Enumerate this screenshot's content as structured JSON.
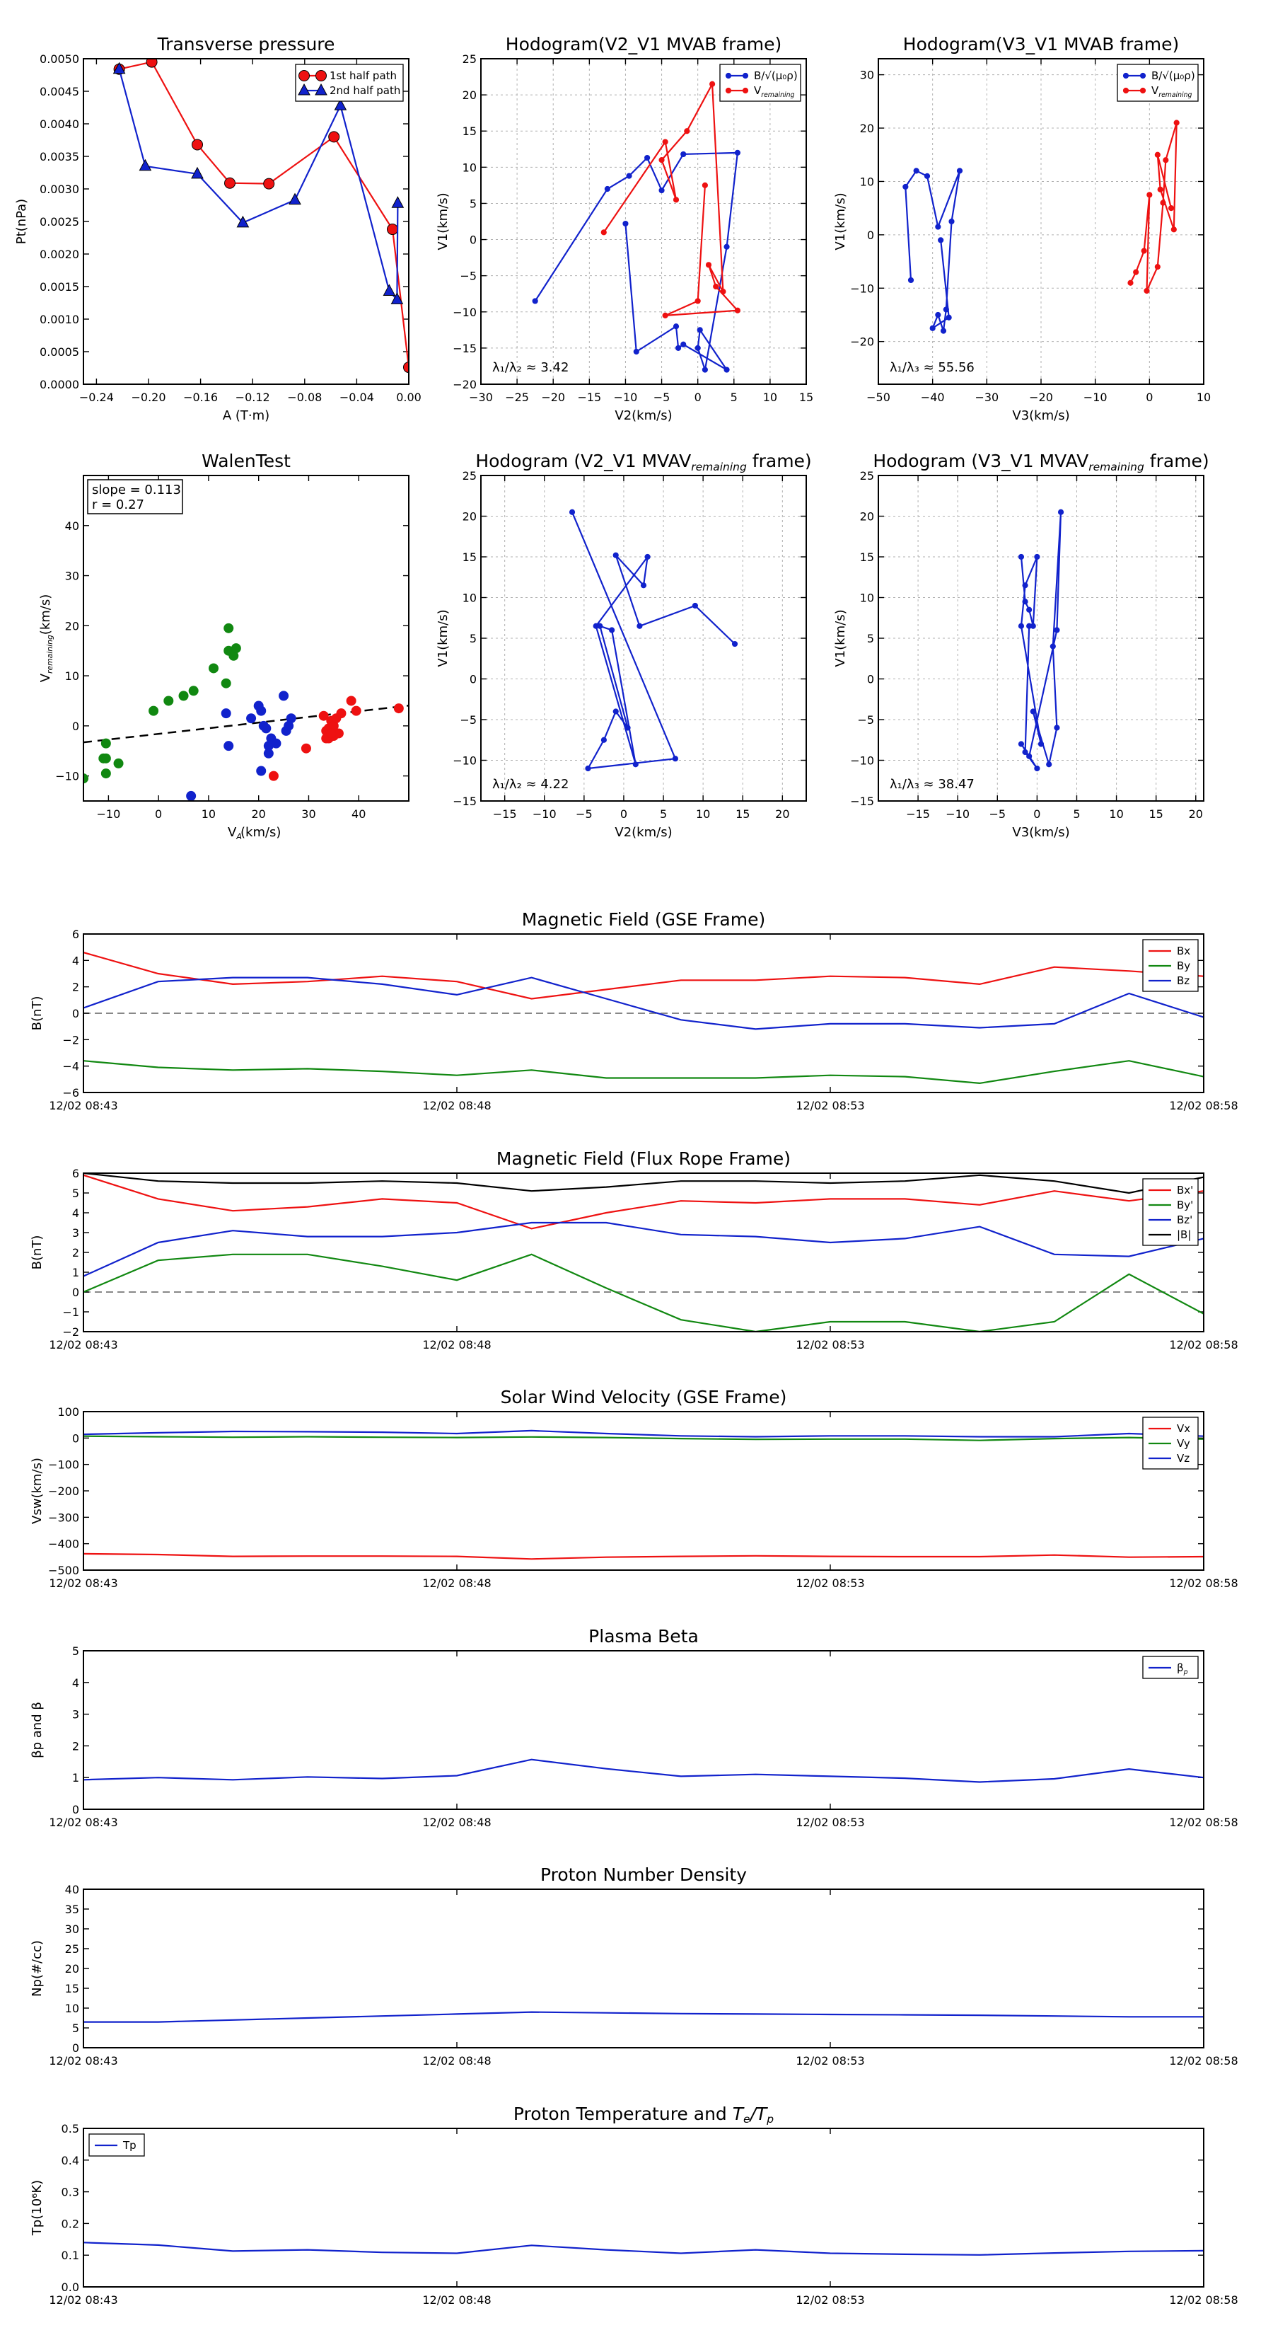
{
  "colors": {
    "red": "#ee1111",
    "blue": "#1122cc",
    "green": "#118811",
    "black": "#000000",
    "gray": "#888888"
  },
  "chart_data": [
    {
      "id": "tp",
      "type": "line",
      "title": "Transverse pressure",
      "xlabel": "A (T·m)",
      "ylabel": "Pt(nPa)",
      "xlim": [
        -0.25,
        0.0
      ],
      "ylim": [
        0.0,
        0.005
      ],
      "xticks": [
        -0.24,
        -0.2,
        -0.16,
        -0.12,
        -0.08,
        -0.04,
        0.0
      ],
      "xticklabels": [
        "−0.24",
        "−0.20",
        "−0.16",
        "−0.12",
        "−0.08",
        "−0.04",
        "0.00"
      ],
      "yticks": [
        0,
        0.0005,
        0.001,
        0.0015,
        0.002,
        0.0025,
        0.003,
        0.0035,
        0.004,
        0.0045,
        0.005
      ],
      "yticklabels": [
        "0.0000",
        "0.0005",
        "0.0010",
        "0.0015",
        "0.0020",
        "0.0025",
        "0.0030",
        "0.0035",
        "0.0040",
        "0.0045",
        "0.0050"
      ],
      "grid": false,
      "legend": "top-right",
      "series": [
        {
          "name": "1st half path",
          "color": "red",
          "marker": "circle",
          "x": [
            -0.2225,
            -0.1975,
            -0.1625,
            -0.1375,
            -0.1075,
            -0.0575,
            -0.0125,
            0.0
          ],
          "y": [
            0.00484,
            0.00495,
            0.00368,
            0.00309,
            0.00308,
            0.0038,
            0.00238,
            0.00026
          ]
        },
        {
          "name": "2nd half path",
          "color": "blue",
          "marker": "triangle",
          "x": [
            -0.2225,
            -0.2025,
            -0.1625,
            -0.1275,
            -0.0875,
            -0.0525,
            -0.015,
            -0.009,
            -0.0085
          ],
          "y": [
            0.00484,
            0.00335,
            0.00323,
            0.00248,
            0.00283,
            0.00428,
            0.00143,
            0.0013,
            0.00278
          ]
        }
      ]
    },
    {
      "id": "h1",
      "type": "line",
      "title": "Hodogram(V2_V1 MVAB frame)",
      "xlabel": "V2(km/s)",
      "ylabel": "V1(km/s)",
      "xlim": [
        -30,
        15
      ],
      "ylim": [
        -20,
        25
      ],
      "xticks": [
        -30,
        -25,
        -20,
        -15,
        -10,
        -5,
        0,
        5,
        10,
        15
      ],
      "yticks": [
        -20,
        -15,
        -10,
        -5,
        0,
        5,
        10,
        15,
        20,
        25
      ],
      "grid": true,
      "legend": "top-right",
      "annotation": "λ₁/λ₂ ≈ 3.42",
      "series": [
        {
          "name": "B/√(μ₀ρ)",
          "color": "blue",
          "marker": "dot",
          "x": [
            -22.5,
            -12.5,
            -9.5,
            -7,
            -5,
            -2,
            5.5,
            4,
            1,
            0,
            0.3,
            4,
            -2,
            -2.7,
            -3,
            -8.5,
            -10
          ],
          "y": [
            -8.5,
            7,
            8.8,
            11.3,
            6.8,
            11.8,
            12,
            -1,
            -18,
            -15,
            -12.5,
            -18,
            -14.5,
            -15,
            -12,
            -15.5,
            2.2
          ]
        },
        {
          "name": "Vremaining",
          "color": "red",
          "marker": "dot",
          "x": [
            -13,
            -4.5,
            -3,
            -5,
            -1.5,
            2,
            3.5,
            1.5,
            2.5,
            5.5,
            -4.5,
            0,
            1
          ],
          "y": [
            1,
            13.5,
            5.5,
            11,
            15,
            21.5,
            -7.2,
            -3.5,
            -6.5,
            -9.8,
            -10.5,
            -8.5,
            7.5
          ]
        }
      ]
    },
    {
      "id": "h2",
      "type": "line",
      "title": "Hodogram(V3_V1 MVAB frame)",
      "xlabel": "V3(km/s)",
      "ylabel": "V1(km/s)",
      "xlim": [
        -50,
        10
      ],
      "ylim": [
        -28,
        33
      ],
      "xticks": [
        -50,
        -40,
        -30,
        -20,
        -10,
        0,
        10
      ],
      "yticks": [
        -20,
        -10,
        0,
        10,
        20,
        30
      ],
      "grid": true,
      "legend": "top-right",
      "annotation": "λ₁/λ₃ ≈ 55.56",
      "series": [
        {
          "name": "B/√(μ₀ρ)",
          "color": "blue",
          "marker": "dot",
          "x": [
            -44,
            -45,
            -43,
            -41,
            -39,
            -35,
            -36.5,
            -37.5,
            -38,
            -39,
            -40,
            -37,
            -38.5
          ],
          "y": [
            -8.5,
            9,
            12,
            11,
            1.5,
            12,
            2.5,
            -14,
            -18,
            -15,
            -17.5,
            -15.5,
            -1
          ]
        },
        {
          "name": "Vremaining",
          "color": "red",
          "marker": "dot",
          "x": [
            -3.5,
            -2.5,
            -1,
            0,
            -0.5,
            1.5,
            2.5,
            3,
            5,
            4.5,
            2,
            1.5,
            4
          ],
          "y": [
            -9,
            -7,
            -3,
            7.5,
            -10.5,
            -6,
            6,
            14,
            21,
            1,
            8.5,
            15,
            5
          ]
        }
      ]
    },
    {
      "id": "wt",
      "type": "scatter",
      "title": "WalenTest",
      "xlabel": "V_A(km/s)",
      "ylabel": "V_remaining(km/s)",
      "xlim": [
        -15,
        50
      ],
      "ylim": [
        -15,
        50
      ],
      "xticks": [
        -10,
        0,
        10,
        20,
        30,
        40
      ],
      "yticks": [
        -10,
        0,
        10,
        20,
        30,
        40
      ],
      "grid": false,
      "stats": [
        "slope = 0.113",
        "r = 0.27"
      ],
      "fit": {
        "slope": 0.113,
        "intercept": -1.6,
        "color": "black"
      },
      "series": [
        {
          "color": "green",
          "x": [
            -15,
            -10.5,
            -11,
            -10.5,
            -8,
            -10.5,
            -1,
            2,
            5,
            7,
            11,
            14,
            14,
            15,
            15.5,
            13.5
          ],
          "y": [
            -10.5,
            -9.5,
            -6.5,
            -3.5,
            -7.5,
            -6.5,
            3,
            5,
            6,
            7,
            11.5,
            19.5,
            15,
            14,
            15.5,
            8.5
          ]
        },
        {
          "color": "blue",
          "x": [
            6.5,
            13.5,
            14,
            18.5,
            20,
            20.5,
            21,
            21.5,
            22,
            22,
            22.5,
            23.5,
            25,
            25.5,
            26,
            26.5,
            20.5
          ],
          "y": [
            -14,
            2.5,
            -4,
            1.5,
            4,
            3,
            0,
            -0.5,
            -4,
            -5.5,
            -2.5,
            -3.5,
            6,
            -1,
            0,
            1.5,
            -9
          ]
        },
        {
          "color": "red",
          "x": [
            23,
            29.5,
            33,
            33.5,
            34,
            34,
            34.5,
            35,
            35,
            35.5,
            36,
            36.5,
            38.5,
            39.5,
            48,
            33.5,
            34.5
          ],
          "y": [
            -10,
            -4.5,
            2,
            -1,
            -2.5,
            -0.5,
            1,
            -2,
            0,
            1.5,
            -1.5,
            2.5,
            5,
            3,
            3.5,
            -2.5,
            -1.5
          ]
        }
      ]
    },
    {
      "id": "h3",
      "type": "line",
      "title": "Hodogram (V2_V1 MVAVremaining frame)",
      "xlabel": "V2(km/s)",
      "ylabel": "V1(km/s)",
      "xlim": [
        -18,
        23
      ],
      "ylim": [
        -15,
        25
      ],
      "xticks": [
        -15,
        -10,
        -5,
        0,
        5,
        10,
        15,
        20
      ],
      "yticks": [
        -15,
        -10,
        -5,
        0,
        5,
        10,
        15,
        20,
        25
      ],
      "grid": true,
      "annotation": "λ₁/λ₂ ≈ 4.22",
      "series": [
        {
          "color": "blue",
          "marker": "dot",
          "x": [
            -6.5,
            6.5,
            -4.5,
            -2.5,
            -1,
            0.5,
            -3,
            -1.5,
            1.5,
            -3.5,
            3,
            2.5,
            -1,
            2,
            9,
            14
          ],
          "y": [
            20.5,
            -9.8,
            -11,
            -7.5,
            -4,
            -6,
            6.5,
            6,
            -10.5,
            6.5,
            15,
            11.5,
            15.2,
            6.5,
            9,
            4.3
          ]
        }
      ]
    },
    {
      "id": "h4",
      "type": "line",
      "title": "Hodogram (V3_V1 MVAVremaining frame)",
      "xlabel": "V3(km/s)",
      "ylabel": "V1(km/s)",
      "xlim": [
        -20,
        21
      ],
      "ylim": [
        -15,
        25
      ],
      "xticks": [
        -15,
        -10,
        -5,
        0,
        5,
        10,
        15,
        20
      ],
      "yticks": [
        -15,
        -10,
        -5,
        0,
        5,
        10,
        15,
        20,
        25
      ],
      "grid": true,
      "annotation": "λ₁/λ₃ ≈ 38.47",
      "series": [
        {
          "color": "blue",
          "marker": "dot",
          "x": [
            -2,
            -1.5,
            -1,
            -0.5,
            0,
            -1.5,
            -2,
            0.5,
            -0.5,
            1.5,
            2.5,
            2,
            3,
            2.5,
            -1,
            -2,
            0,
            -1.5,
            -1
          ],
          "y": [
            15,
            9.5,
            8.5,
            6.5,
            15,
            11.5,
            6.5,
            -8,
            -4,
            -10.5,
            -6,
            4,
            20.5,
            6,
            -9.5,
            -8,
            -11,
            -9,
            6.5
          ]
        }
      ]
    },
    {
      "id": "ts1",
      "type": "line",
      "title": "Magnetic Field (GSE Frame)",
      "ylabel": "B(nT)",
      "ylim": [
        -6,
        6
      ],
      "yticks": [
        -6,
        -4,
        -2,
        0,
        2,
        4,
        6
      ],
      "xticklabels": [
        "12/02 08:43",
        "12/02 08:48",
        "12/02 08:53",
        "12/02 08:58"
      ],
      "zero_line": true,
      "legend": "top-right",
      "series": [
        {
          "name": "Bx",
          "color": "red",
          "values": [
            4.6,
            3.0,
            2.2,
            2.4,
            2.8,
            2.4,
            1.1,
            1.8,
            2.5,
            2.5,
            2.8,
            2.7,
            2.2,
            3.5,
            3.2,
            2.8
          ]
        },
        {
          "name": "By",
          "color": "green",
          "values": [
            -3.6,
            -4.1,
            -4.3,
            -4.2,
            -4.4,
            -4.7,
            -4.3,
            -4.9,
            -4.9,
            -4.9,
            -4.7,
            -4.8,
            -5.3,
            -4.4,
            -3.6,
            -4.8
          ]
        },
        {
          "name": "Bz",
          "color": "blue",
          "values": [
            0.4,
            2.4,
            2.7,
            2.7,
            2.2,
            1.4,
            2.7,
            1.1,
            -0.5,
            -1.2,
            -0.8,
            -0.8,
            -1.1,
            -0.8,
            1.5,
            -0.3
          ]
        }
      ]
    },
    {
      "id": "ts2",
      "type": "line",
      "title": "Magnetic Field (Flux Rope Frame)",
      "ylabel": "B(nT)",
      "ylim": [
        -2,
        6
      ],
      "yticks": [
        -2,
        -1,
        0,
        1,
        2,
        3,
        4,
        5,
        6
      ],
      "xticklabels": [
        "12/02 08:43",
        "12/02 08:48",
        "12/02 08:53",
        "12/02 08:58"
      ],
      "zero_line": true,
      "legend": "top-right",
      "series": [
        {
          "name": "Bx'",
          "color": "red",
          "values": [
            5.9,
            4.7,
            4.1,
            4.3,
            4.7,
            4.5,
            3.2,
            4.0,
            4.6,
            4.5,
            4.7,
            4.7,
            4.4,
            5.1,
            4.6,
            5.1
          ]
        },
        {
          "name": "By'",
          "color": "green",
          "values": [
            0.0,
            1.6,
            1.9,
            1.9,
            1.3,
            0.6,
            1.9,
            0.2,
            -1.4,
            -2.0,
            -1.5,
            -1.5,
            -2.0,
            -1.5,
            0.9,
            -1.1
          ]
        },
        {
          "name": "Bz'",
          "color": "blue",
          "values": [
            0.8,
            2.5,
            3.1,
            2.8,
            2.8,
            3.0,
            3.5,
            3.5,
            2.9,
            2.8,
            2.5,
            2.7,
            3.3,
            1.9,
            1.8,
            2.7
          ]
        },
        {
          "name": "|B|",
          "color": "black",
          "values": [
            6.0,
            5.6,
            5.5,
            5.5,
            5.6,
            5.5,
            5.1,
            5.3,
            5.6,
            5.6,
            5.5,
            5.6,
            5.9,
            5.6,
            5.0,
            5.8
          ]
        }
      ]
    },
    {
      "id": "ts3",
      "type": "line",
      "title": "Solar Wind Velocity (GSE Frame)",
      "ylabel": "Vsw(km/s)",
      "ylim": [
        -500,
        100
      ],
      "yticks": [
        -500,
        -400,
        -300,
        -200,
        -100,
        0,
        100
      ],
      "xticklabels": [
        "12/02 08:43",
        "12/02 08:48",
        "12/02 08:53",
        "12/02 08:58"
      ],
      "legend": "top-right",
      "series": [
        {
          "name": "Vx",
          "color": "red",
          "values": [
            -438,
            -441,
            -448,
            -447,
            -447,
            -448,
            -458,
            -451,
            -448,
            -446,
            -448,
            -449,
            -449,
            -443,
            -451,
            -449
          ]
        },
        {
          "name": "Vy",
          "color": "green",
          "values": [
            7,
            5,
            3,
            5,
            3,
            2,
            4,
            2,
            -2,
            -5,
            -4,
            -4,
            -9,
            -2,
            2,
            -4
          ]
        },
        {
          "name": "Vz",
          "color": "blue",
          "values": [
            14,
            20,
            25,
            24,
            22,
            17,
            28,
            17,
            8,
            5,
            8,
            8,
            5,
            5,
            17,
            7
          ]
        }
      ]
    },
    {
      "id": "ts4",
      "type": "line",
      "title": "Plasma Beta",
      "ylabel": "βp and β",
      "ylim": [
        0,
        5
      ],
      "yticks": [
        0,
        1,
        2,
        3,
        4,
        5
      ],
      "xticklabels": [
        "12/02 08:43",
        "12/02 08:48",
        "12/02 08:53",
        "12/02 08:58"
      ],
      "legend": "top-right",
      "series": [
        {
          "name": "βp",
          "color": "blue",
          "values": [
            0.93,
            1.0,
            0.93,
            1.02,
            0.97,
            1.06,
            1.57,
            1.28,
            1.04,
            1.1,
            1.04,
            0.98,
            0.86,
            0.96,
            1.27,
            1.0
          ]
        }
      ]
    },
    {
      "id": "ts5",
      "type": "line",
      "title": "Proton Number Density",
      "ylabel": "Np(#/cc)",
      "ylim": [
        0,
        40
      ],
      "yticks": [
        0,
        5,
        10,
        15,
        20,
        25,
        30,
        35,
        40
      ],
      "xticklabels": [
        "12/02 08:43",
        "12/02 08:48",
        "12/02 08:53",
        "12/02 08:58"
      ],
      "series": [
        {
          "color": "blue",
          "values": [
            6.5,
            6.5,
            7.0,
            7.5,
            8.0,
            8.5,
            9.0,
            8.8,
            8.6,
            8.5,
            8.4,
            8.3,
            8.2,
            8.0,
            7.8,
            7.8
          ]
        }
      ]
    },
    {
      "id": "ts6",
      "type": "line",
      "title": "Proton Temperature and Te/Tp",
      "ylabel": "Tp(10⁶K)",
      "ylim": [
        0,
        0.5
      ],
      "yticks": [
        0,
        0.1,
        0.2,
        0.3,
        0.4,
        0.5
      ],
      "yticklabels": [
        "0.0",
        "0.1",
        "0.2",
        "0.3",
        "0.4",
        "0.5"
      ],
      "xticklabels": [
        "12/02 08:43",
        "12/02 08:48",
        "12/02 08:53",
        "12/02 08:58"
      ],
      "legend": "top-left",
      "series": [
        {
          "name": "Tp",
          "color": "blue",
          "values": [
            0.14,
            0.132,
            0.113,
            0.117,
            0.109,
            0.106,
            0.131,
            0.117,
            0.106,
            0.117,
            0.106,
            0.103,
            0.101,
            0.107,
            0.112,
            0.114
          ]
        }
      ]
    }
  ]
}
